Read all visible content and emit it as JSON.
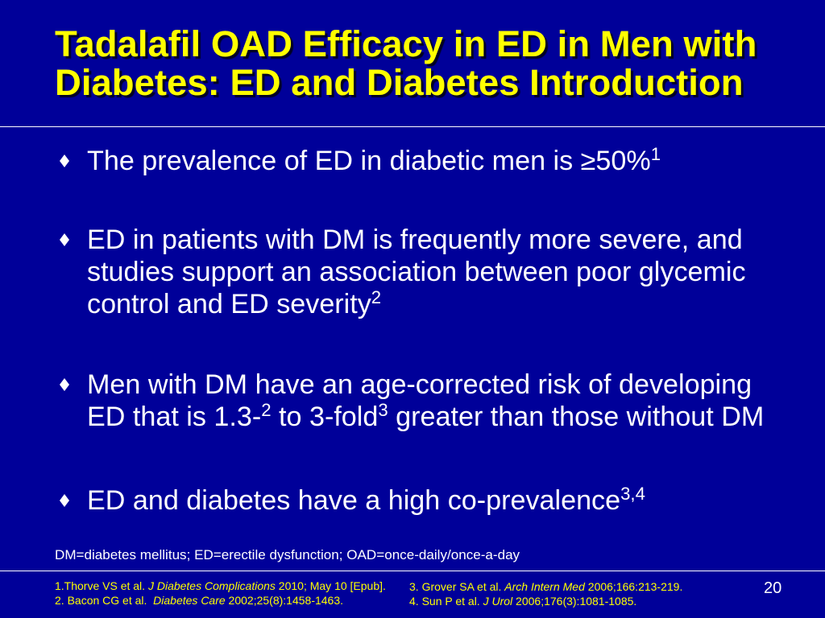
{
  "slide": {
    "colors": {
      "background": "#000099",
      "title": "#FFFF00",
      "body_text": "#FFFFFF",
      "references": "#FFFF00",
      "rules": "#FFFFFF"
    },
    "title": "Tadalafil OAD Efficacy in ED in Men with Diabetes: ED and Diabetes Introduction",
    "bullet_icon": "diamond",
    "bullets": [
      {
        "segments": [
          {
            "text": "The prevalence of ED in diabetic men is ≥50%",
            "sup": "1"
          }
        ]
      },
      {
        "segments": [
          {
            "text": "ED in patients with DM is frequently more severe, and studies support an association between poor glycemic control and ED severity",
            "sup": "2"
          }
        ]
      },
      {
        "segments": [
          {
            "text": "Men with DM have an age-corrected risk of developing ED that is 1.3-",
            "sup": "2"
          },
          {
            "text": " to 3-fold",
            "sup": "3"
          },
          {
            "text": " greater than those without DM"
          }
        ]
      },
      {
        "segments": [
          {
            "text": "ED and diabetes have a high co-prevalence",
            "sup": "3,4"
          }
        ]
      }
    ],
    "abbreviations": "DM=diabetes mellitus; ED=erectile dysfunction; OAD=once-daily/once-a-day",
    "references": [
      {
        "lead": "1.Thorve VS et al. ",
        "journal": "J Diabetes Complications",
        "tail": " 2010; May 10 [Epub]."
      },
      {
        "lead": "2. Bacon CG et al.  ",
        "journal": "Diabetes Care",
        "tail": " 2002;25(8):1458-1463."
      },
      {
        "lead": "3. Grover SA et al. ",
        "journal": "Arch Intern Med",
        "tail": " 2006;166:213-219."
      },
      {
        "lead": "4. Sun P et al. ",
        "journal": "J Urol",
        "tail": " 2006;176(3):1081-1085."
      }
    ],
    "page_number": "20"
  }
}
